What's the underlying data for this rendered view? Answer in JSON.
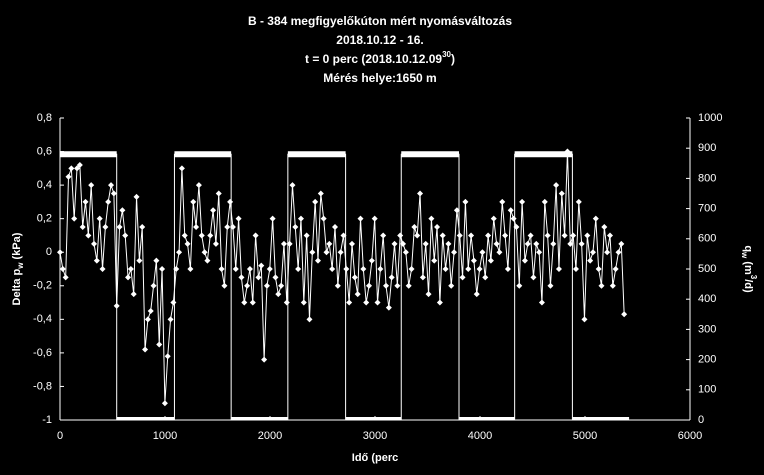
{
  "chart_data": {
    "type": "line",
    "title": [
      "B - 384 megfigyelőkúton mért nyomásváltozás",
      "2018.10.12 - 16.",
      [
        "t = 0 perc (2018.10.12.09",
        "30",
        ")"
      ],
      "Mérés helye:1650 m"
    ],
    "x_label": "Idő (perc",
    "y_label": [
      "Delta p",
      "w",
      " (kPa)"
    ],
    "y2_label": [
      "q",
      "w",
      " (m",
      "3",
      "/d)"
    ],
    "xlim": [
      0,
      6000
    ],
    "xticks": [
      0,
      1000,
      2000,
      3000,
      4000,
      5000,
      6000
    ],
    "ylim": [
      -1,
      0.8
    ],
    "yticks": [
      {
        "value": 0.8,
        "label": "0,8"
      },
      {
        "value": 0.6,
        "label": "0,6"
      },
      {
        "value": 0.4,
        "label": "0,4"
      },
      {
        "value": 0.2,
        "label": "0,2"
      },
      0,
      {
        "value": -0.2,
        "label": "-0,2"
      },
      {
        "value": -0.4,
        "label": "-0,4"
      },
      {
        "value": -0.6,
        "label": "-0,6"
      },
      {
        "value": -0.8,
        "label": "-0,8"
      },
      -1
    ],
    "y2lim": [
      0,
      1000
    ],
    "y2ticks": [
      0,
      100,
      200,
      300,
      400,
      500,
      600,
      700,
      800,
      900,
      1000
    ],
    "series": [
      {
        "color": "#ffffff",
        "axis": "y",
        "x": [
          0,
          27,
          54,
          81,
          108,
          135,
          162,
          189,
          216,
          243,
          270,
          297,
          324,
          351,
          378,
          405,
          432,
          459,
          486,
          513,
          540,
          567,
          594,
          621,
          648,
          675,
          702,
          729,
          756,
          783,
          810,
          837,
          864,
          891,
          918,
          945,
          972,
          999,
          1026,
          1053,
          1080,
          1107,
          1134,
          1161,
          1188,
          1215,
          1242,
          1269,
          1296,
          1323,
          1350,
          1377,
          1404,
          1431,
          1458,
          1485,
          1512,
          1539,
          1566,
          1593,
          1620,
          1647,
          1674,
          1701,
          1728,
          1755,
          1782,
          1809,
          1836,
          1863,
          1890,
          1917,
          1944,
          1971,
          1998,
          2025,
          2052,
          2079,
          2106,
          2133,
          2160,
          2187,
          2214,
          2241,
          2268,
          2295,
          2322,
          2349,
          2376,
          2403,
          2430,
          2457,
          2484,
          2511,
          2538,
          2565,
          2592,
          2619,
          2646,
          2673,
          2700,
          2727,
          2754,
          2781,
          2808,
          2835,
          2862,
          2889,
          2916,
          2943,
          2970,
          2997,
          3024,
          3051,
          3078,
          3105,
          3132,
          3159,
          3186,
          3213,
          3240,
          3267,
          3294,
          3321,
          3348,
          3375,
          3402,
          3429,
          3456,
          3483,
          3510,
          3537,
          3564,
          3591,
          3618,
          3645,
          3672,
          3699,
          3726,
          3753,
          3780,
          3807,
          3834,
          3861,
          3888,
          3915,
          3942,
          3969,
          3996,
          4023,
          4050,
          4077,
          4104,
          4131,
          4158,
          4185,
          4212,
          4239,
          4266,
          4293,
          4320,
          4347,
          4374,
          4401,
          4428,
          4455,
          4482,
          4509,
          4536,
          4563,
          4590,
          4617,
          4644,
          4671,
          4698,
          4725,
          4752,
          4779,
          4806,
          4833,
          4860,
          4887,
          4914,
          4941,
          4968,
          4995,
          5022,
          5049,
          5076,
          5103,
          5130,
          5157,
          5184,
          5211,
          5238,
          5265,
          5292,
          5319,
          5346,
          5373
        ],
        "values": [
          0,
          -0.1,
          -0.15,
          0.45,
          0.5,
          0.2,
          0.5,
          0.52,
          0.15,
          0.3,
          0.1,
          0.4,
          0.05,
          -0.05,
          0.2,
          -0.1,
          0.15,
          0.3,
          0.4,
          0.35,
          -0.32,
          0.15,
          0.25,
          0.1,
          -0.15,
          -0.1,
          -0.25,
          0.33,
          -0.05,
          0.15,
          -0.58,
          -0.4,
          -0.35,
          -0.2,
          -0.05,
          -0.55,
          -0.1,
          -0.9,
          -0.62,
          -0.4,
          -0.3,
          -0.1,
          0,
          0.5,
          0.1,
          0.05,
          -0.1,
          0.3,
          0.15,
          0.4,
          0.1,
          0,
          -0.05,
          0.1,
          0.25,
          0.05,
          0.35,
          -0.1,
          -0.2,
          0.15,
          0.3,
          0.15,
          -0.1,
          0.2,
          -0.15,
          -0.3,
          -0.2,
          -0.1,
          -0.3,
          0.1,
          -0.15,
          -0.08,
          -0.64,
          -0.2,
          -0.1,
          0.2,
          -0.15,
          -0.25,
          -0.2,
          0.05,
          -0.3,
          0.05,
          0.4,
          0.15,
          -0.1,
          0.2,
          -0.3,
          0.1,
          -0.4,
          0,
          0.3,
          -0.05,
          0.35,
          0.2,
          0,
          0.05,
          -0.1,
          0.15,
          -0.2,
          0,
          0.1,
          -0.1,
          -0.3,
          0.05,
          -0.15,
          -0.25,
          0.2,
          -0.1,
          -0.3,
          -0.2,
          -0.05,
          0.2,
          -0.3,
          -0.1,
          0.1,
          -0.2,
          -0.33,
          -0.15,
          0.05,
          -0.2,
          0.1,
          0.05,
          0,
          -0.2,
          -0.1,
          0.15,
          0.1,
          0.35,
          -0.15,
          0.05,
          -0.25,
          0.2,
          -0.05,
          0.15,
          -0.3,
          0.1,
          -0.1,
          0.05,
          -0.2,
          0,
          0.25,
          0.1,
          -0.15,
          0.3,
          -0.1,
          0.1,
          -0.05,
          -0.25,
          -0.1,
          0,
          -0.15,
          0.1,
          -0.05,
          0.2,
          0.05,
          0,
          0.3,
          0.1,
          -0.1,
          0.25,
          0.2,
          0.15,
          -0.2,
          0.3,
          -0.05,
          0.05,
          0.1,
          -0.15,
          0.05,
          0,
          -0.3,
          0.3,
          0.1,
          -0.2,
          0.05,
          0.4,
          -0.1,
          0.35,
          0.1,
          0.6,
          0.05,
          0.1,
          -0.1,
          0.3,
          0.05,
          -0.4,
          0.1,
          -0.05,
          0,
          0.2,
          -0.1,
          -0.2,
          0.15,
          0,
          0.1,
          -0.2,
          -0.1,
          0,
          0.05,
          -0.37
        ]
      },
      {
        "color": "#ffffff",
        "axis": "y2",
        "x": [
          0,
          540,
          540,
          1090,
          1090,
          1630,
          1630,
          2170,
          2170,
          2720,
          2720,
          3250,
          3250,
          3800,
          3800,
          4330,
          4330,
          4880,
          4880,
          5420
        ],
        "values": [
          880,
          880,
          0,
          0,
          880,
          880,
          0,
          0,
          880,
          880,
          0,
          0,
          880,
          880,
          0,
          0,
          880,
          880,
          0,
          0
        ]
      }
    ]
  }
}
